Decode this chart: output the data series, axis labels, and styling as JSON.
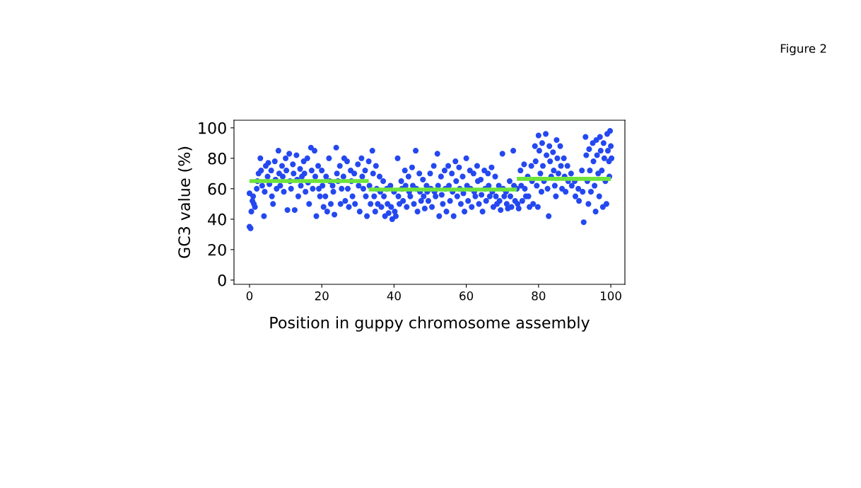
{
  "chart_data": {
    "type": "scatter",
    "xlabel": "Position in guppy chromosome assembly",
    "ylabel": "GC3 value (%)",
    "annotations": [
      "Figure 2"
    ],
    "xlim": [
      -4.3,
      103.9
    ],
    "ylim": [
      -2.8,
      105
    ],
    "xticks": [
      0,
      20,
      40,
      60,
      80,
      100
    ],
    "yticks": [
      0,
      20,
      40,
      60,
      80,
      100
    ],
    "grid": false,
    "legend": false,
    "series": [
      {
        "color": "#2448f0",
        "marker": "circle",
        "x": [
          0,
          0,
          0.3,
          0.5,
          0.8,
          1,
          1.2,
          1.5,
          2,
          2.2,
          2.5,
          3,
          3.2,
          3.5,
          4,
          4.2,
          4.5,
          5,
          5.2,
          5.5,
          6,
          6.2,
          6.5,
          7,
          7.2,
          7.5,
          8,
          8.2,
          8.5,
          9,
          9.2,
          9.5,
          10,
          10.2,
          10.5,
          11,
          11.2,
          11.5,
          12,
          12.2,
          12.5,
          13,
          13.2,
          13.5,
          14,
          14.2,
          14.5,
          15,
          15.2,
          15.5,
          16,
          16.2,
          16.5,
          17,
          17.2,
          17.5,
          18,
          18.2,
          18.5,
          19,
          19.2,
          19.5,
          20,
          20.2,
          20.5,
          21,
          21.2,
          21.5,
          22,
          22.2,
          22.5,
          23,
          23.2,
          23.5,
          24,
          24.2,
          24.5,
          25,
          25.2,
          25.5,
          26,
          26.2,
          26.5,
          27,
          27.2,
          27.5,
          28,
          28.2,
          28.5,
          29,
          29.2,
          30,
          30.2,
          30.5,
          31,
          31.2,
          31.5,
          32,
          32.2,
          32.5,
          33,
          33.2,
          33.5,
          34,
          34.2,
          34.5,
          34.8,
          35,
          35.2,
          35.5,
          36,
          36.2,
          36.5,
          37,
          37.2,
          37.5,
          38,
          38.2,
          38.5,
          39,
          39.2,
          39.5,
          40,
          40.2,
          40.5,
          41,
          41.2,
          41.5,
          42,
          42.2,
          42.5,
          43,
          43.2,
          43.5,
          44,
          44.2,
          44.5,
          45,
          45.2,
          45.5,
          46,
          46.2,
          46.5,
          47,
          47.2,
          47.5,
          48,
          48.2,
          48.5,
          49,
          49.2,
          49.5,
          50,
          50.2,
          50.5,
          51,
          51.2,
          51.5,
          52,
          52.2,
          52.5,
          53,
          53.2,
          53.5,
          54,
          54.2,
          54.5,
          55,
          55.2,
          55.5,
          56,
          56.2,
          56.5,
          57,
          57.2,
          57.5,
          58,
          58.2,
          58.5,
          59,
          59.2,
          59.5,
          60,
          60.2,
          60.5,
          61,
          61.2,
          61.5,
          62,
          62.2,
          62.5,
          63,
          63.2,
          63.5,
          64,
          64.2,
          64.5,
          65,
          65.2,
          65.5,
          66,
          66.2,
          66.5,
          67,
          67.2,
          67.5,
          68,
          68.2,
          68.5,
          69,
          69.2,
          69.5,
          70,
          70.2,
          70.5,
          71,
          71.2,
          71.5,
          72,
          72.2,
          72.5,
          73,
          73.2,
          73.5,
          74,
          74.2,
          74.5,
          75,
          75.2,
          75.5,
          76,
          76.2,
          76.5,
          77,
          77.2,
          77.5,
          78,
          78.2,
          78.5,
          79,
          79.2,
          79.5,
          79.8,
          80,
          80.2,
          80.5,
          80.8,
          81,
          81.2,
          81.5,
          82,
          82.2,
          82.5,
          82.8,
          83,
          83.2,
          83.5,
          84,
          84.2,
          84.5,
          84.8,
          85,
          85.2,
          85.5,
          86,
          86.2,
          86.5,
          87,
          87.2,
          87.5,
          88,
          88.2,
          89,
          89.2,
          90,
          90.2,
          91,
          91.2,
          92,
          92.2,
          92.5,
          93,
          93.2,
          93.5,
          93.8,
          94,
          94.2,
          94.5,
          95,
          95.2,
          95.5,
          95.8,
          96,
          96.2,
          96.5,
          96.8,
          97,
          97.2,
          97.5,
          97.8,
          98,
          98.2,
          98.5,
          98.8,
          99,
          99.2,
          99.5,
          99.8,
          100,
          100.2,
          99.6
        ],
        "values": [
          35,
          57,
          34,
          45,
          52,
          55,
          50,
          48,
          60,
          65,
          70,
          80,
          72,
          62,
          42,
          58,
          75,
          68,
          77,
          63,
          72,
          55,
          50,
          78,
          66,
          60,
          85,
          70,
          62,
          75,
          68,
          58,
          80,
          72,
          46,
          83,
          65,
          60,
          76,
          70,
          46,
          82,
          66,
          55,
          73,
          62,
          68,
          78,
          70,
          58,
          80,
          64,
          50,
          87,
          72,
          60,
          85,
          68,
          42,
          75,
          60,
          55,
          72,
          62,
          48,
          55,
          68,
          45,
          80,
          65,
          50,
          62,
          58,
          43,
          87,
          70,
          65,
          75,
          50,
          60,
          68,
          80,
          52,
          78,
          60,
          48,
          72,
          65,
          55,
          70,
          50,
          76,
          62,
          45,
          80,
          68,
          60,
          72,
          55,
          42,
          78,
          62,
          50,
          85,
          70,
          55,
          45,
          75,
          60,
          50,
          68,
          58,
          48,
          65,
          55,
          42,
          60,
          50,
          44,
          62,
          48,
          40,
          58,
          45,
          42,
          80,
          55,
          50,
          65,
          60,
          52,
          72,
          62,
          48,
          68,
          58,
          55,
          74,
          62,
          50,
          85,
          60,
          45,
          70,
          58,
          52,
          66,
          55,
          47,
          62,
          58,
          52,
          70,
          60,
          48,
          75,
          58,
          55,
          83,
          62,
          42,
          68,
          56,
          50,
          72,
          60,
          45,
          75,
          62,
          52,
          70,
          58,
          42,
          78,
          65,
          55,
          74,
          60,
          50,
          68,
          57,
          45,
          80,
          62,
          52,
          72,
          60,
          48,
          70,
          58,
          55,
          75,
          65,
          50,
          66,
          56,
          45,
          72,
          60,
          52,
          70,
          62,
          55,
          74,
          58,
          48,
          68,
          55,
          50,
          62,
          52,
          46,
          83,
          60,
          55,
          58,
          50,
          47,
          65,
          55,
          48,
          85,
          62,
          52,
          60,
          50,
          47,
          72,
          62,
          52,
          76,
          60,
          55,
          68,
          55,
          48,
          75,
          65,
          50,
          88,
          78,
          62,
          48,
          95,
          85,
          70,
          58,
          90,
          75,
          65,
          96,
          82,
          60,
          42,
          88,
          78,
          68,
          84,
          72,
          62,
          55,
          92,
          80,
          70,
          88,
          75,
          60,
          80,
          68,
          58,
          75,
          65,
          70,
          62,
          65,
          55,
          60,
          52,
          72,
          58,
          38,
          94,
          82,
          65,
          50,
          86,
          72,
          58,
          90,
          78,
          62,
          45,
          92,
          82,
          70,
          55,
          94,
          85,
          72,
          48,
          90,
          80,
          65,
          50,
          96,
          85,
          78,
          98,
          88,
          80,
          68
        ]
      },
      {
        "type": "line",
        "color": "#6ee33c",
        "x": [
          0,
          33
        ],
        "values": [
          65,
          65
        ]
      },
      {
        "type": "line",
        "color": "#6ee33c",
        "x": [
          33,
          74
        ],
        "values": [
          59.5,
          59.5
        ]
      },
      {
        "type": "line",
        "color": "#6ee33c",
        "x": [
          74,
          100
        ],
        "values": [
          66.5,
          66.5
        ]
      }
    ]
  }
}
